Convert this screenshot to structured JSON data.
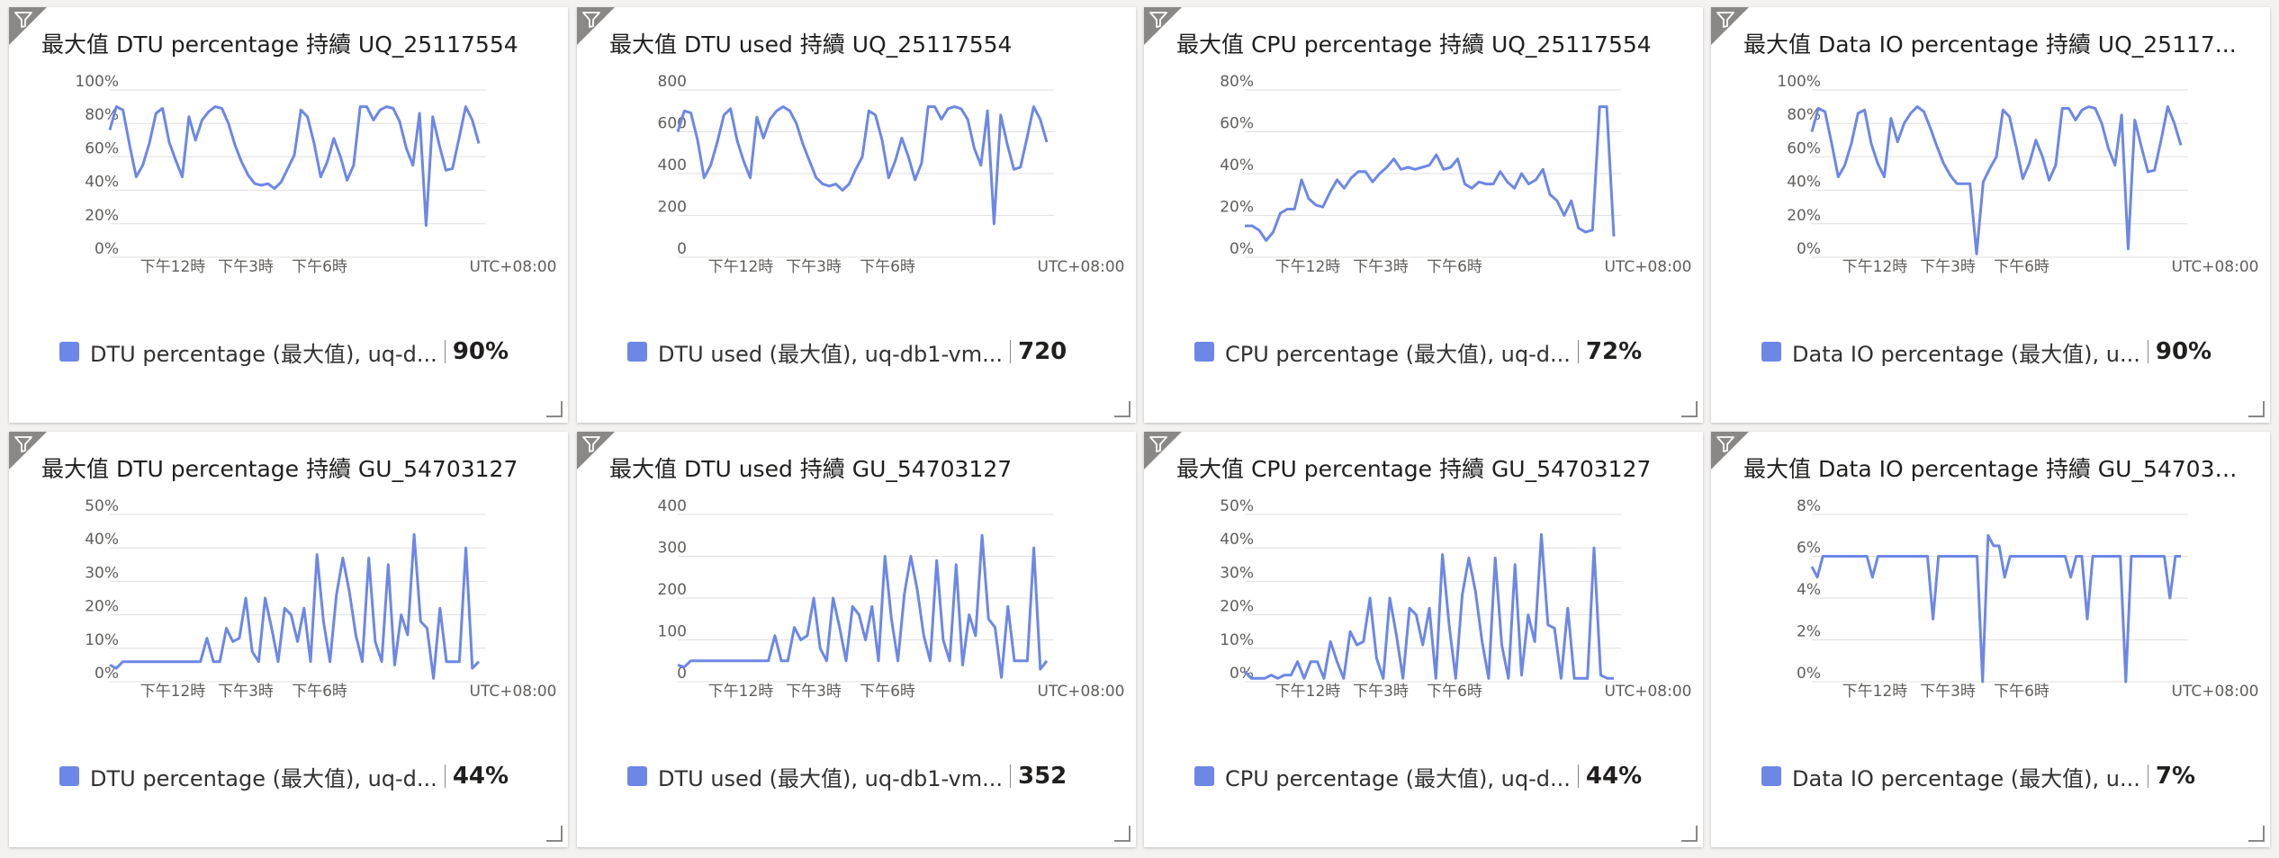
{
  "colors": {
    "series": "#6c87e6",
    "grid": "#e1dfdd",
    "corner": "#8a8886"
  },
  "icons": {
    "filter": "filter-icon",
    "resize": "resize-handle-icon"
  },
  "x_axis": {
    "ticks": [
      "下午12時",
      "下午3時",
      "下午6時"
    ],
    "timezone": "UTC+08:00"
  },
  "tiles": [
    {
      "title": "最大值 DTU percentage 持續 UQ_25117554",
      "legend": {
        "label": "DTU percentage (最大值), uq-d...",
        "value": "90%"
      },
      "chart_data": {
        "type": "line",
        "y_ticks": [
          "0%",
          "20%",
          "40%",
          "60%",
          "80%",
          "100%"
        ],
        "ylim": [
          0,
          100
        ],
        "values": [
          76,
          90,
          88,
          67,
          48,
          55,
          68,
          86,
          89,
          69,
          58,
          48,
          84,
          70,
          82,
          87,
          90,
          89,
          80,
          67,
          57,
          49,
          44,
          43,
          44,
          41,
          45,
          53,
          61,
          88,
          84,
          68,
          48,
          57,
          71,
          60,
          46,
          55,
          90,
          90,
          82,
          88,
          90,
          89,
          81,
          65,
          55,
          86,
          19,
          84,
          67,
          52,
          53,
          71,
          90,
          82,
          68
        ]
      }
    },
    {
      "title": "最大值 DTU used 持續 UQ_25117554",
      "legend": {
        "label": "DTU used (最大值), uq-db1-vm...",
        "value": "720"
      },
      "chart_data": {
        "type": "line",
        "y_ticks": [
          "0",
          "200",
          "400",
          "600",
          "800"
        ],
        "ylim": [
          0,
          800
        ],
        "values": [
          600,
          700,
          690,
          560,
          380,
          440,
          550,
          680,
          710,
          560,
          460,
          380,
          670,
          570,
          660,
          700,
          720,
          700,
          640,
          540,
          460,
          380,
          350,
          340,
          350,
          320,
          350,
          420,
          480,
          700,
          680,
          560,
          380,
          460,
          570,
          480,
          370,
          450,
          720,
          720,
          660,
          710,
          720,
          710,
          660,
          520,
          440,
          700,
          160,
          680,
          540,
          420,
          430,
          570,
          720,
          660,
          550
        ]
      }
    },
    {
      "title": "最大值 CPU percentage 持續 UQ_25117554",
      "legend": {
        "label": "CPU percentage (最大值), uq-d...",
        "value": "72%"
      },
      "chart_data": {
        "type": "line",
        "y_ticks": [
          "0%",
          "20%",
          "40%",
          "60%",
          "80%"
        ],
        "ylim": [
          0,
          80
        ],
        "values": [
          15,
          15,
          13,
          8,
          12,
          21,
          23,
          23,
          37,
          28,
          25,
          24,
          31,
          37,
          33,
          38,
          41,
          41,
          36,
          40,
          43,
          47,
          42,
          43,
          42,
          43,
          44,
          49,
          42,
          43,
          47,
          35,
          33,
          36,
          35,
          35,
          41,
          36,
          33,
          40,
          35,
          37,
          42,
          30,
          27,
          20,
          27,
          14,
          12,
          13,
          72,
          72,
          10
        ]
      }
    },
    {
      "title": "最大值 Data IO percentage 持續 UQ_25117...",
      "legend": {
        "label": "Data IO percentage (最大值), u...",
        "value": "90%"
      },
      "chart_data": {
        "type": "line",
        "y_ticks": [
          "0%",
          "20%",
          "40%",
          "60%",
          "80%",
          "100%"
        ],
        "ylim": [
          0,
          100
        ],
        "values": [
          75,
          89,
          87,
          68,
          48,
          55,
          68,
          86,
          88,
          68,
          56,
          48,
          83,
          69,
          80,
          86,
          90,
          87,
          77,
          66,
          56,
          49,
          44,
          44,
          44,
          2,
          45,
          53,
          60,
          88,
          84,
          66,
          47,
          56,
          70,
          60,
          46,
          55,
          89,
          89,
          82,
          88,
          90,
          89,
          80,
          65,
          55,
          85,
          5,
          82,
          66,
          51,
          52,
          70,
          90,
          80,
          67
        ]
      }
    },
    {
      "title": "最大值 DTU percentage 持續 GU_54703127",
      "legend": {
        "label": "DTU percentage (最大值), uq-d...",
        "value": "44%"
      },
      "chart_data": {
        "type": "line",
        "y_ticks": [
          "0%",
          "10%",
          "20%",
          "30%",
          "40%",
          "50%"
        ],
        "ylim": [
          0,
          50
        ],
        "values": [
          5,
          4,
          6,
          6,
          6,
          6,
          6,
          6,
          6,
          6,
          6,
          6,
          6,
          6,
          6,
          13,
          6,
          6,
          16,
          12,
          13,
          25,
          9,
          6,
          25,
          16,
          6,
          22,
          20,
          12,
          22,
          6,
          38,
          18,
          6,
          26,
          37,
          27,
          14,
          6,
          37,
          12,
          6,
          35,
          5,
          20,
          14,
          44,
          18,
          16,
          1,
          22,
          6,
          6,
          6,
          40,
          4,
          6
        ]
      }
    },
    {
      "title": "最大值 DTU used 持續 GU_54703127",
      "legend": {
        "label": "DTU used (最大值), uq-db1-vm...",
        "value": "352"
      },
      "chart_data": {
        "type": "line",
        "y_ticks": [
          "0",
          "100",
          "200",
          "300",
          "400"
        ],
        "ylim": [
          0,
          400
        ],
        "values": [
          40,
          35,
          50,
          50,
          50,
          50,
          50,
          50,
          50,
          50,
          50,
          50,
          50,
          50,
          50,
          110,
          50,
          50,
          130,
          100,
          110,
          200,
          80,
          50,
          200,
          130,
          50,
          180,
          160,
          100,
          180,
          50,
          300,
          150,
          50,
          210,
          300,
          220,
          110,
          50,
          290,
          100,
          50,
          280,
          40,
          160,
          110,
          350,
          150,
          130,
          10,
          180,
          50,
          50,
          50,
          320,
          30,
          50
        ]
      }
    },
    {
      "title": "最大值 CPU percentage 持續 GU_54703127",
      "legend": {
        "label": "CPU percentage (最大值), uq-d...",
        "value": "44%"
      },
      "chart_data": {
        "type": "line",
        "y_ticks": [
          "0%",
          "10%",
          "20%",
          "30%",
          "40%",
          "50%"
        ],
        "ylim": [
          0,
          50
        ],
        "values": [
          3,
          1,
          1,
          1,
          2,
          1,
          2,
          2,
          6,
          1,
          6,
          6,
          1,
          12,
          6,
          1,
          15,
          11,
          12,
          25,
          7,
          1,
          25,
          14,
          1,
          22,
          20,
          11,
          22,
          1,
          38,
          17,
          1,
          26,
          37,
          27,
          12,
          1,
          37,
          11,
          1,
          35,
          2,
          20,
          12,
          44,
          17,
          16,
          1,
          22,
          1,
          1,
          1,
          40,
          2,
          1,
          1
        ]
      }
    },
    {
      "title": "最大值 Data IO percentage 持續 GU_547031...",
      "legend": {
        "label": "Data IO percentage (最大值), u...",
        "value": "7%"
      },
      "chart_data": {
        "type": "line",
        "y_ticks": [
          "0%",
          "2%",
          "4%",
          "6%",
          "8%"
        ],
        "ylim": [
          0,
          8
        ],
        "values": [
          5.5,
          5,
          6,
          6,
          6,
          6,
          6,
          6,
          6,
          6,
          6,
          5,
          6,
          6,
          6,
          6,
          6,
          6,
          6,
          6,
          6,
          6,
          3,
          6,
          6,
          6,
          6,
          6,
          6,
          6,
          6,
          0,
          7,
          6.5,
          6.5,
          5,
          6,
          6,
          6,
          6,
          6,
          6,
          6,
          6,
          6,
          6,
          6,
          5,
          6,
          6,
          3,
          6,
          6,
          6,
          6,
          6,
          6,
          0,
          6,
          6,
          6,
          6,
          6,
          6,
          6,
          4,
          6,
          6
        ]
      }
    }
  ]
}
